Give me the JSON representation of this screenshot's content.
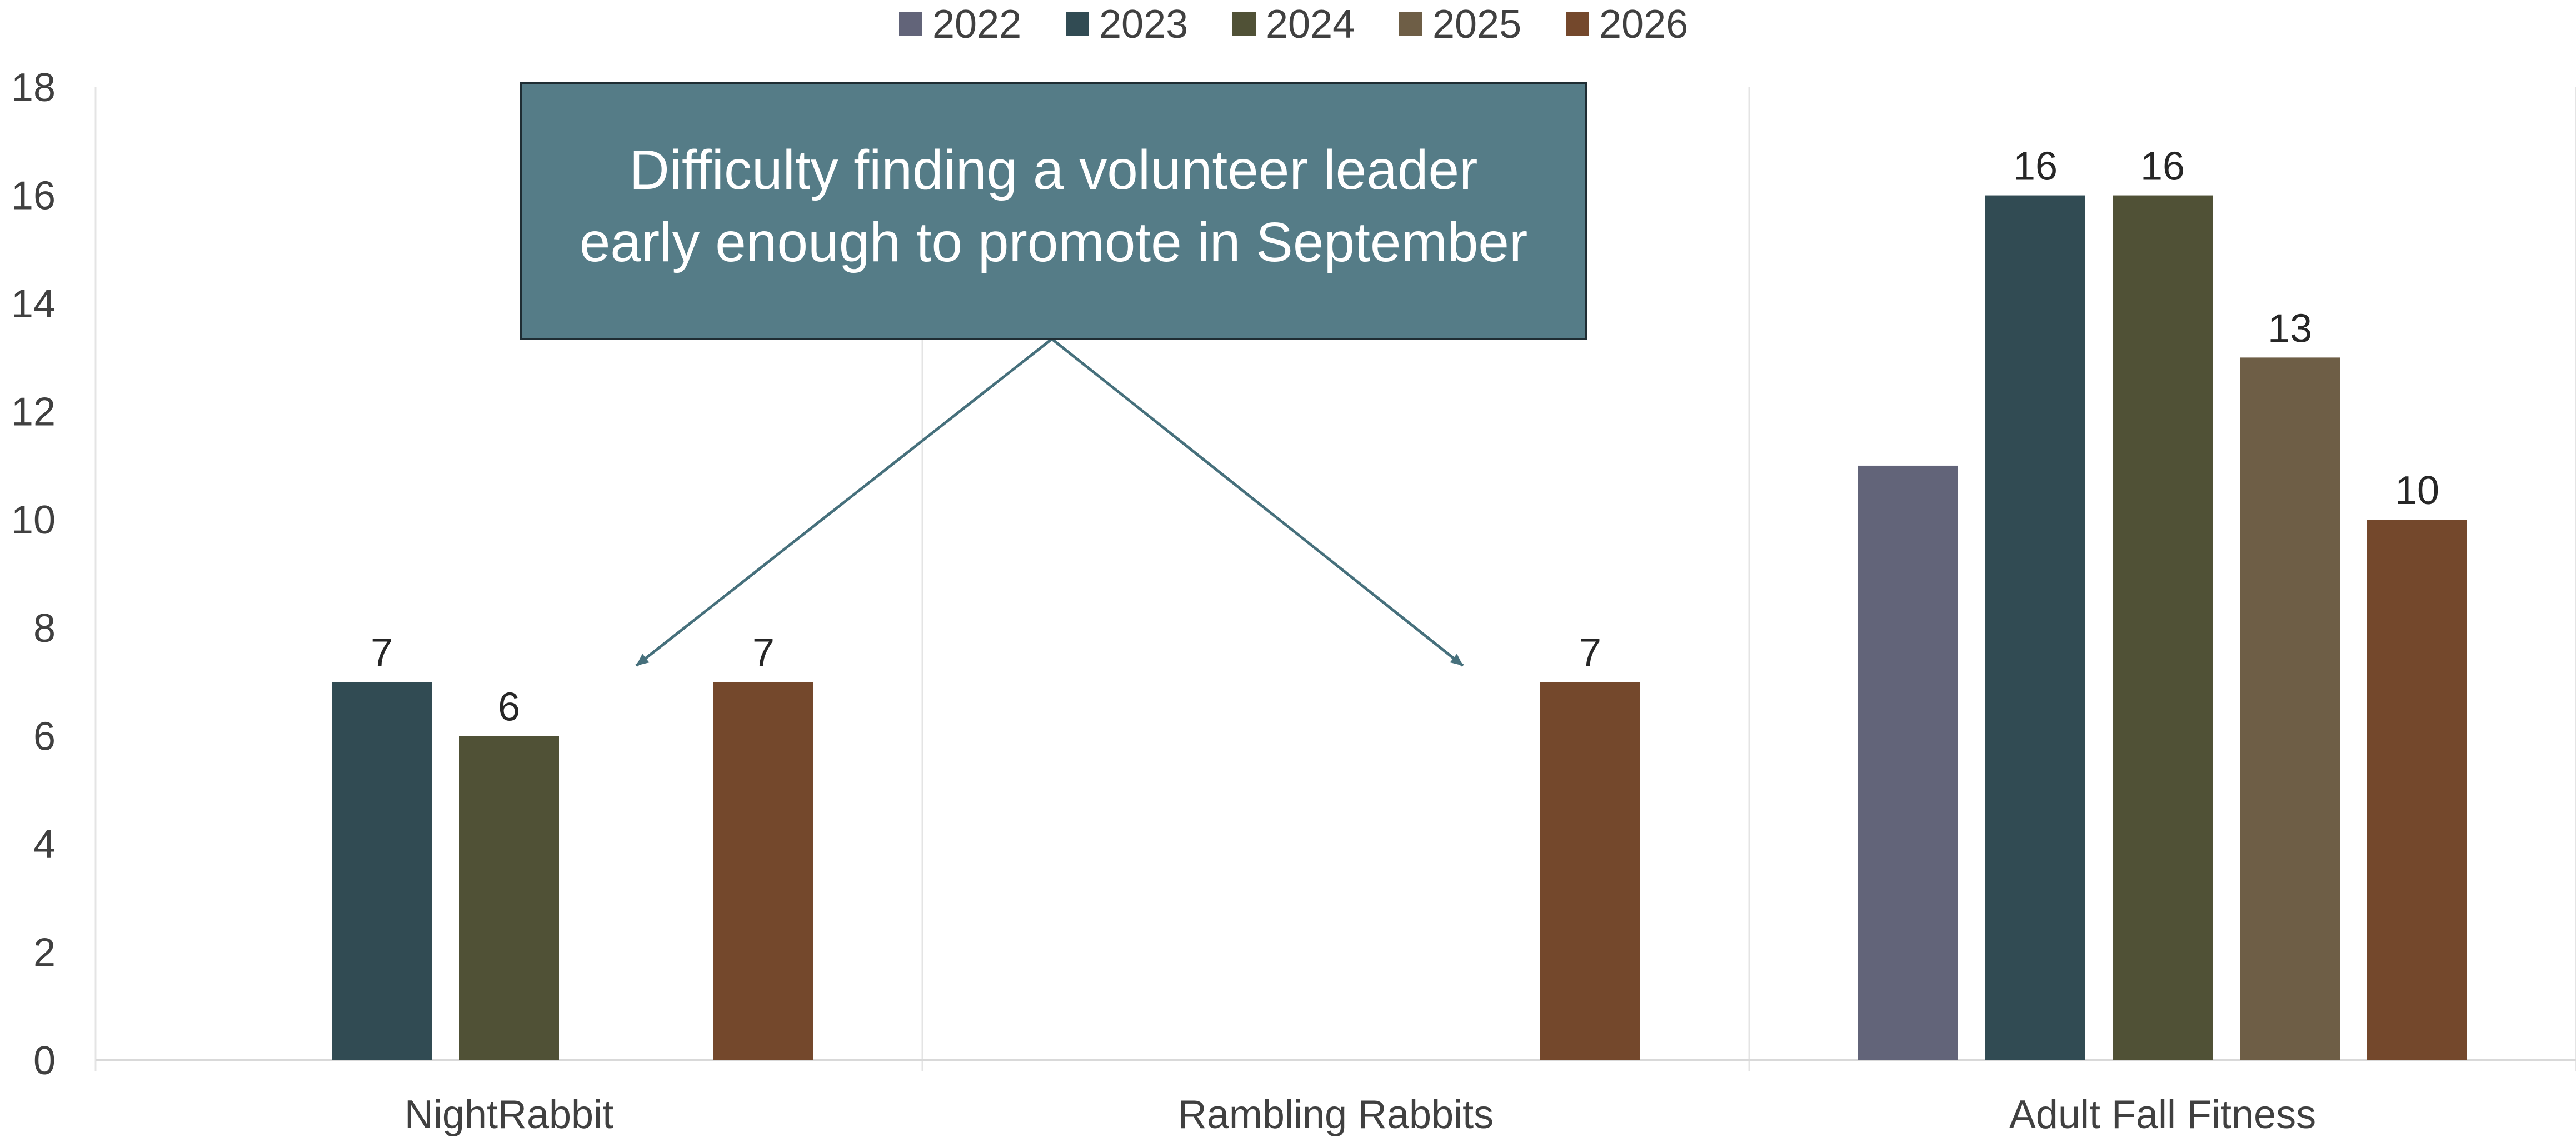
{
  "chart_data": {
    "type": "bar",
    "categories": [
      "NightRabbit",
      "Rambling Rabbits",
      "Adult Fall Fitness"
    ],
    "series": [
      {
        "name": "2022",
        "color": "#626479",
        "values": [
          null,
          null,
          11
        ]
      },
      {
        "name": "2023",
        "color": "#314B53",
        "values": [
          7,
          null,
          16
        ]
      },
      {
        "name": "2024",
        "color": "#505136",
        "values": [
          6,
          null,
          16
        ]
      },
      {
        "name": "2025",
        "color": "#6E5E46",
        "values": [
          null,
          null,
          13
        ]
      },
      {
        "name": "2026",
        "color": "#74482C",
        "values": [
          7,
          7,
          10
        ]
      }
    ],
    "data_labels": [
      {
        "series": "2023",
        "category": "NightRabbit",
        "text": "7"
      },
      {
        "series": "2024",
        "category": "NightRabbit",
        "text": "6"
      },
      {
        "series": "2026",
        "category": "NightRabbit",
        "text": "7"
      },
      {
        "series": "2026",
        "category": "Rambling Rabbits",
        "text": "7"
      },
      {
        "series": "2023",
        "category": "Adult Fall Fitness",
        "text": "16"
      },
      {
        "series": "2024",
        "category": "Adult Fall Fitness",
        "text": "16"
      },
      {
        "series": "2025",
        "category": "Adult Fall Fitness",
        "text": "13"
      },
      {
        "series": "2026",
        "category": "Adult Fall Fitness",
        "text": "10"
      }
    ],
    "ylim": [
      0,
      18
    ],
    "yticks": [
      "0",
      "2",
      "4",
      "6",
      "8",
      "10",
      "12",
      "14",
      "16",
      "18"
    ],
    "title": "",
    "xlabel": "",
    "ylabel": "",
    "legend": "top-center",
    "grid": "vertical category separators",
    "annotation": {
      "lines": [
        "Difficulty finding a volunteer leader",
        "early enough to promote in September"
      ],
      "box_color": "#557C87",
      "arrow_color": "#46707C",
      "points_to": [
        {
          "series": "2025",
          "category": "NightRabbit",
          "value": 7.3
        },
        {
          "series": "2025",
          "category": "Rambling Rabbits",
          "value": 7.3
        }
      ]
    }
  }
}
